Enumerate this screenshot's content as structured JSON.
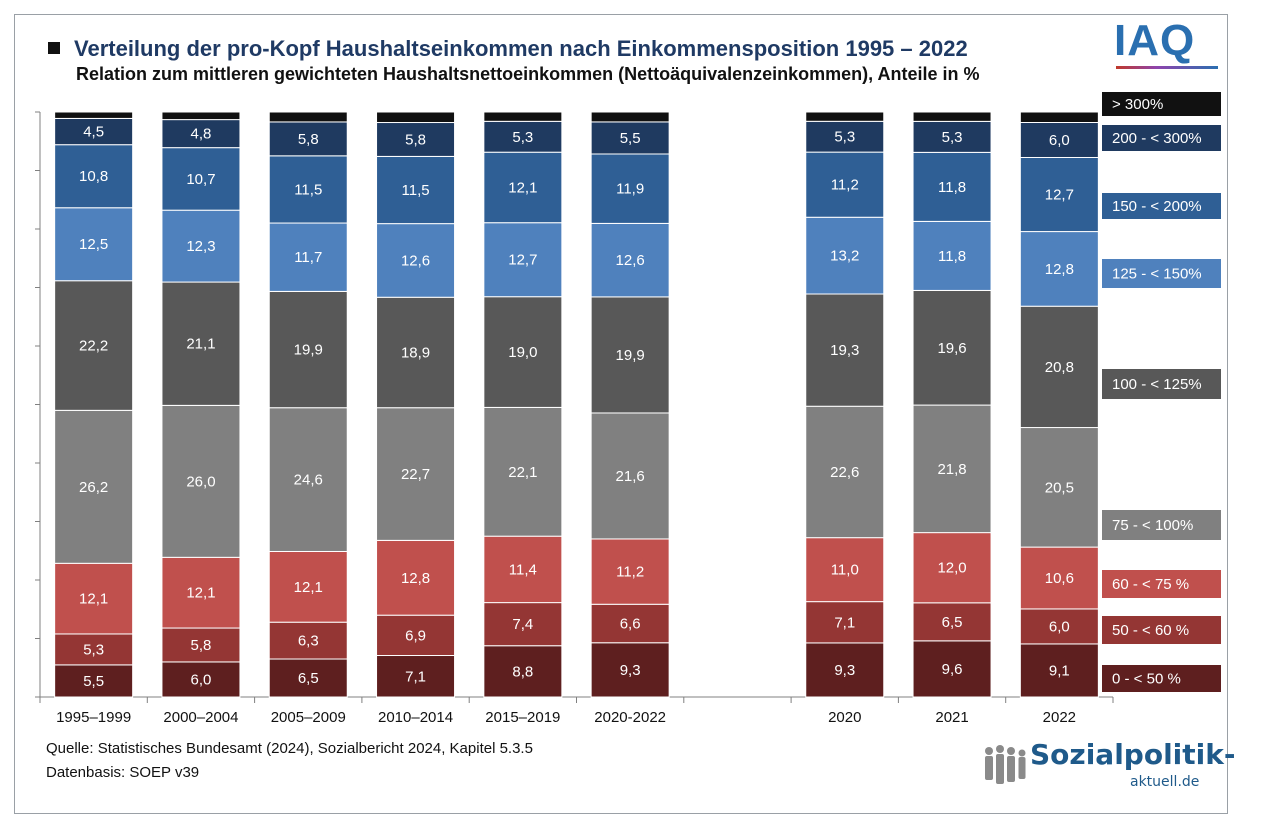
{
  "header": {
    "title": "Verteilung der pro-Kopf Haushaltseinkommen nach Einkommensposition 1995 – 2022",
    "subtitle": "Relation zum mittleren gewichteten Haushaltsnettoeinkommen (Nettoäquivalenzeinkommen), Anteile in %"
  },
  "logos": {
    "iaq": "IAQ",
    "sozialpolitik_main": "Sozialpolitik-",
    "sozialpolitik_sub": "aktuell.de"
  },
  "footer": {
    "source": "Quelle: Statistisches Bundesamt (2024), Sozialbericht 2024, Kapitel 5.3.5",
    "database": "Datenbasis: SOEP v39"
  },
  "chart_data": {
    "type": "bar",
    "stacked": true,
    "title": "Verteilung der pro-Kopf Haushaltseinkommen nach Einkommensposition 1995 – 2022",
    "subtitle": "Relation zum mittleren gewichteten Haushaltsnettoeinkommen (Nettoäquivalenzeinkommen), Anteile in %",
    "ylim": [
      0,
      100
    ],
    "categories": [
      "1995–1999",
      "2000–2004",
      "2005–2009",
      "2010–2014",
      "2015–2019",
      "2020-2022",
      "",
      "2020",
      "2021",
      "2022"
    ],
    "series": [
      {
        "name": "0 - < 50 %",
        "color": "#5e1f1f",
        "values": [
          5.5,
          6.0,
          6.5,
          7.1,
          8.8,
          9.3,
          null,
          9.3,
          9.6,
          9.1
        ]
      },
      {
        "name": "50 - < 60 %",
        "color": "#943634",
        "values": [
          5.3,
          5.8,
          6.3,
          6.9,
          7.4,
          6.6,
          null,
          7.1,
          6.5,
          6.0
        ]
      },
      {
        "name": "60 - < 75 %",
        "color": "#c0504d",
        "values": [
          12.1,
          12.1,
          12.1,
          12.8,
          11.4,
          11.2,
          null,
          11.0,
          12.0,
          10.6
        ]
      },
      {
        "name": "75 - < 100%",
        "color": "#808080",
        "values": [
          26.2,
          26.0,
          24.6,
          22.7,
          22.1,
          21.6,
          null,
          22.6,
          21.8,
          20.5
        ]
      },
      {
        "name": "100 - < 125%",
        "color": "#585858",
        "values": [
          22.2,
          21.1,
          19.9,
          18.9,
          19.0,
          19.9,
          null,
          19.3,
          19.6,
          20.8
        ]
      },
      {
        "name": "125 - < 150%",
        "color": "#4f81bd",
        "values": [
          12.5,
          12.3,
          11.7,
          12.6,
          12.7,
          12.6,
          null,
          13.2,
          11.8,
          12.8
        ]
      },
      {
        "name": "150 - < 200%",
        "color": "#2f5f95",
        "values": [
          10.8,
          10.7,
          11.5,
          11.5,
          12.1,
          11.9,
          null,
          11.2,
          11.8,
          12.7
        ]
      },
      {
        "name": "200 - < 300%",
        "color": "#1f3a60",
        "values": [
          4.5,
          4.8,
          5.8,
          5.8,
          5.3,
          5.5,
          null,
          5.3,
          5.3,
          6.0
        ]
      },
      {
        "name": "> 300%",
        "color": "#111111",
        "values": [
          1.1,
          1.3,
          1.7,
          1.8,
          1.6,
          1.7,
          null,
          1.6,
          1.6,
          1.8
        ]
      }
    ],
    "data_labels": {
      "0 - < 50 %": [
        "5,5",
        "6,0",
        "6,5",
        "7,1",
        "8,8",
        "9,3",
        "",
        "9,3",
        "9,6",
        "9,1"
      ],
      "50 - < 60 %": [
        "5,3",
        "5,8",
        "6,3",
        "6,9",
        "7,4",
        "6,6",
        "",
        "7,1",
        "6,5",
        "6,0"
      ],
      "60 - < 75 %": [
        "12,1",
        "12,1",
        "12,1",
        "12,8",
        "11,4",
        "11,2",
        "",
        "11,0",
        "12,0",
        "10,6"
      ],
      "75 - < 100%": [
        "26,2",
        "26,0",
        "24,6",
        "22,7",
        "22,1",
        "21,6",
        "",
        "22,6",
        "21,8",
        "20,5"
      ],
      "100 - < 125%": [
        "22,2",
        "21,1",
        "19,9",
        "18,9",
        "19,0",
        "19,9",
        "",
        "19,3",
        "19,6",
        "20,8"
      ],
      "125 - < 150%": [
        "12,5",
        "12,3",
        "11,7",
        "12,6",
        "12,7",
        "12,6",
        "",
        "13,2",
        "11,8",
        "12,8"
      ],
      "150 - < 200%": [
        "10,8",
        "10,7",
        "11,5",
        "11,5",
        "12,1",
        "11,9",
        "",
        "11,2",
        "11,8",
        "12,7"
      ],
      "200 - < 300%": [
        "4,5",
        "4,8",
        "5,8",
        "5,8",
        "5,3",
        "5,5",
        "",
        "5,3",
        "5,3",
        "6,0"
      ],
      "> 300%": [
        "",
        "",
        "",
        "",
        "",
        "",
        "",
        "",
        "",
        ""
      ]
    },
    "legend_placement": "right",
    "grid": false
  }
}
